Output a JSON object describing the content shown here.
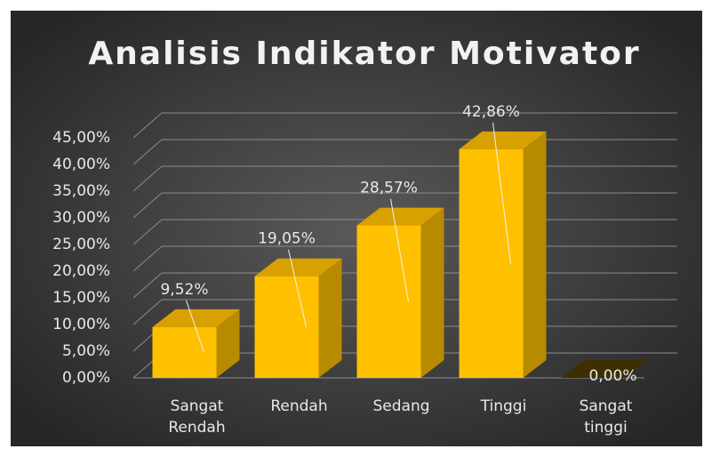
{
  "chart_data": {
    "type": "bar3d",
    "title": "Analisis Indikator Motivator",
    "categories": [
      "Sangat Rendah",
      "Rendah",
      "Sedang",
      "Tinggi",
      "Sangat tinggi"
    ],
    "values": [
      9.52,
      19.05,
      28.57,
      42.86,
      0
    ],
    "value_labels": [
      "9,52%",
      "19,05%",
      "28,57%",
      "42,86%",
      "0,00%"
    ],
    "color": "#ffc000",
    "ylim": [
      0,
      45
    ],
    "yticks": [
      {
        "value": 0,
        "label": "0,00%"
      },
      {
        "value": 5,
        "label": "5,00%"
      },
      {
        "value": 10,
        "label": "10,00%"
      },
      {
        "value": 15,
        "label": "15,00%"
      },
      {
        "value": 20,
        "label": "20,00%"
      },
      {
        "value": 25,
        "label": "25,00%"
      },
      {
        "value": 30,
        "label": "30,00%"
      },
      {
        "value": 35,
        "label": "35,00%"
      },
      {
        "value": 40,
        "label": "40,00%"
      },
      {
        "value": 45,
        "label": "45,00%"
      }
    ],
    "grid": true
  }
}
